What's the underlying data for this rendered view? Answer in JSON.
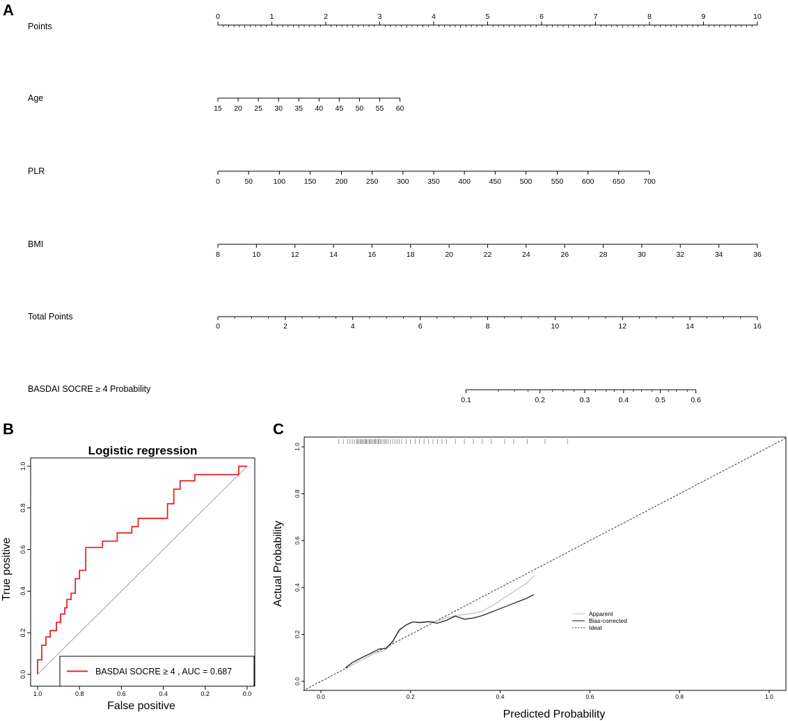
{
  "panels": {
    "a": "A",
    "b": "B",
    "c": "C"
  },
  "chart_data": [
    {
      "type": "nomogram",
      "id": "nomogram",
      "rows": [
        {
          "label": "Points",
          "ticks": [
            "0",
            "1",
            "2",
            "3",
            "4",
            "5",
            "6",
            "7",
            "8",
            "9",
            "10"
          ],
          "tick_values": [
            0,
            1,
            2,
            3,
            4,
            5,
            6,
            7,
            8,
            9,
            10
          ],
          "minor_per_major": 10
        },
        {
          "label": "Age",
          "ticks": [
            "15",
            "20",
            "25",
            "30",
            "35",
            "40",
            "45",
            "50",
            "55",
            "60"
          ],
          "tick_values": [
            0,
            0.375,
            0.75,
            1.125,
            1.5,
            1.875,
            2.25,
            2.625,
            3.0,
            3.375
          ]
        },
        {
          "label": "PLR",
          "ticks": [
            "0",
            "50",
            "100",
            "150",
            "200",
            "250",
            "300",
            "350",
            "400",
            "450",
            "500",
            "550",
            "600",
            "650",
            "700"
          ],
          "tick_values": [
            0,
            0.57,
            1.14,
            1.71,
            2.29,
            2.86,
            3.43,
            4.0,
            4.57,
            5.14,
            5.71,
            6.29,
            6.86,
            7.43,
            8.0
          ]
        },
        {
          "label": "BMI",
          "ticks": [
            "8",
            "10",
            "12",
            "14",
            "16",
            "18",
            "20",
            "22",
            "24",
            "26",
            "28",
            "30",
            "32",
            "34",
            "36"
          ],
          "tick_values": [
            0,
            0.714,
            1.429,
            2.143,
            2.857,
            3.571,
            4.286,
            5.0,
            5.714,
            6.429,
            7.143,
            7.857,
            8.571,
            9.286,
            10.0
          ]
        },
        {
          "label": "Total Points",
          "ticks": [
            "0",
            "2",
            "4",
            "6",
            "8",
            "10",
            "12",
            "14",
            "16"
          ],
          "tick_values": [
            0,
            1.25,
            2.5,
            3.75,
            5.0,
            6.25,
            7.5,
            8.75,
            10.0
          ],
          "minor_per_major": 4
        },
        {
          "label": "BASDAI SOCRE ≥ 4 Probability",
          "ticks": [
            "0.1",
            "0.2",
            "0.3",
            "0.4",
            "0.5",
            "0.6"
          ],
          "tick_values": [
            4.6,
            5.97,
            6.8,
            7.52,
            8.2,
            8.86
          ]
        }
      ]
    },
    {
      "type": "line",
      "id": "roc",
      "title": "Logistic regression",
      "xlabel": "False positive",
      "ylabel": "True positive",
      "xlim": [
        1.0,
        0.0
      ],
      "ylim": [
        0.0,
        1.0
      ],
      "xticks": [
        "1.0",
        "0.8",
        "0.6",
        "0.4",
        "0.2",
        "0.0"
      ],
      "xtick_values": [
        1.0,
        0.8,
        0.6,
        0.4,
        0.2,
        0.0
      ],
      "yticks": [
        "0.0",
        "0.2",
        "0.4",
        "0.6",
        "0.8",
        "1.0"
      ],
      "ytick_values": [
        0.0,
        0.2,
        0.4,
        0.6,
        0.8,
        1.0
      ],
      "series": [
        {
          "name": "BASDAI SOCRE ≥ 4",
          "color": "#e32424",
          "x": [
            1.0,
            1.0,
            0.98,
            0.98,
            0.96,
            0.96,
            0.94,
            0.94,
            0.91,
            0.91,
            0.89,
            0.89,
            0.87,
            0.87,
            0.86,
            0.86,
            0.84,
            0.84,
            0.82,
            0.82,
            0.8,
            0.8,
            0.77,
            0.77,
            0.73,
            0.73,
            0.69,
            0.69,
            0.62,
            0.62,
            0.55,
            0.55,
            0.52,
            0.52,
            0.5,
            0.5,
            0.38,
            0.38,
            0.35,
            0.35,
            0.32,
            0.32,
            0.29,
            0.29,
            0.25,
            0.25,
            0.23,
            0.23,
            0.04,
            0.04,
            0.0
          ],
          "y": [
            0.0,
            0.07,
            0.07,
            0.14,
            0.14,
            0.18,
            0.18,
            0.21,
            0.21,
            0.25,
            0.25,
            0.29,
            0.29,
            0.32,
            0.32,
            0.36,
            0.36,
            0.39,
            0.39,
            0.46,
            0.46,
            0.5,
            0.5,
            0.61,
            0.61,
            0.61,
            0.61,
            0.64,
            0.64,
            0.68,
            0.68,
            0.71,
            0.71,
            0.75,
            0.75,
            0.75,
            0.75,
            0.82,
            0.82,
            0.89,
            0.89,
            0.93,
            0.93,
            0.93,
            0.93,
            0.96,
            0.96,
            0.96,
            0.96,
            1.0,
            1.0
          ]
        },
        {
          "name": "Reference",
          "color": "#888888",
          "x": [
            1.0,
            0.0
          ],
          "y": [
            0.0,
            1.0
          ]
        }
      ],
      "legend": {
        "series_label": "BASDAI SOCRE ≥ 4 , AUC =  0.687",
        "auc": 0.687,
        "placement": "bottom-right"
      }
    },
    {
      "type": "line",
      "id": "calibration",
      "xlabel": "Predicted Probability",
      "ylabel": "Actual Probability",
      "xlim": [
        -0.04,
        1.04
      ],
      "ylim": [
        -0.04,
        1.04
      ],
      "xticks": [
        "0.0",
        "0.2",
        "0.4",
        "0.6",
        "0.8",
        "1.0"
      ],
      "xtick_values": [
        0.0,
        0.2,
        0.4,
        0.6,
        0.8,
        1.0
      ],
      "yticks": [
        "0.0",
        "0.2",
        "0.4",
        "0.6",
        "0.8",
        "1.0"
      ],
      "ytick_values": [
        0.0,
        0.2,
        0.4,
        0.6,
        0.8,
        1.0
      ],
      "series": [
        {
          "name": "Ideal",
          "color": "#333333",
          "dashed": true,
          "x": [
            -0.04,
            1.04
          ],
          "y": [
            -0.04,
            1.04
          ]
        },
        {
          "name": "Apparent",
          "color": "#bdbdbd",
          "x": [
            0.06,
            0.08,
            0.1,
            0.12,
            0.14,
            0.155,
            0.17,
            0.185,
            0.2,
            0.22,
            0.24,
            0.26,
            0.28,
            0.3,
            0.32,
            0.34,
            0.36,
            0.38,
            0.4,
            0.42,
            0.44,
            0.46,
            0.475
          ],
          "y": [
            0.06,
            0.08,
            0.1,
            0.12,
            0.13,
            0.15,
            0.2,
            0.235,
            0.252,
            0.255,
            0.255,
            0.257,
            0.27,
            0.28,
            0.285,
            0.29,
            0.3,
            0.32,
            0.345,
            0.37,
            0.395,
            0.42,
            0.45
          ]
        },
        {
          "name": "Bias-corrected",
          "color": "#111111",
          "x": [
            0.055,
            0.07,
            0.09,
            0.11,
            0.13,
            0.145,
            0.16,
            0.175,
            0.19,
            0.205,
            0.22,
            0.24,
            0.26,
            0.28,
            0.3,
            0.32,
            0.34,
            0.36,
            0.38,
            0.4,
            0.42,
            0.44,
            0.46,
            0.475
          ],
          "y": [
            0.058,
            0.08,
            0.1,
            0.118,
            0.138,
            0.14,
            0.17,
            0.22,
            0.24,
            0.253,
            0.25,
            0.254,
            0.248,
            0.26,
            0.278,
            0.265,
            0.27,
            0.28,
            0.295,
            0.31,
            0.325,
            0.34,
            0.355,
            0.37
          ]
        }
      ],
      "rug_x": [
        0.04,
        0.05,
        0.06,
        0.065,
        0.07,
        0.075,
        0.08,
        0.082,
        0.085,
        0.088,
        0.09,
        0.092,
        0.095,
        0.098,
        0.1,
        0.102,
        0.105,
        0.108,
        0.11,
        0.112,
        0.115,
        0.118,
        0.12,
        0.122,
        0.125,
        0.128,
        0.13,
        0.133,
        0.136,
        0.14,
        0.143,
        0.146,
        0.15,
        0.155,
        0.16,
        0.165,
        0.17,
        0.175,
        0.18,
        0.19,
        0.2,
        0.21,
        0.22,
        0.23,
        0.24,
        0.25,
        0.26,
        0.27,
        0.28,
        0.3,
        0.32,
        0.34,
        0.36,
        0.38,
        0.41,
        0.43,
        0.46,
        0.5,
        0.55
      ],
      "legend": {
        "entries": [
          "Apparent",
          "Bias-corrected",
          "Ideal"
        ],
        "placement": "center-right"
      }
    }
  ]
}
